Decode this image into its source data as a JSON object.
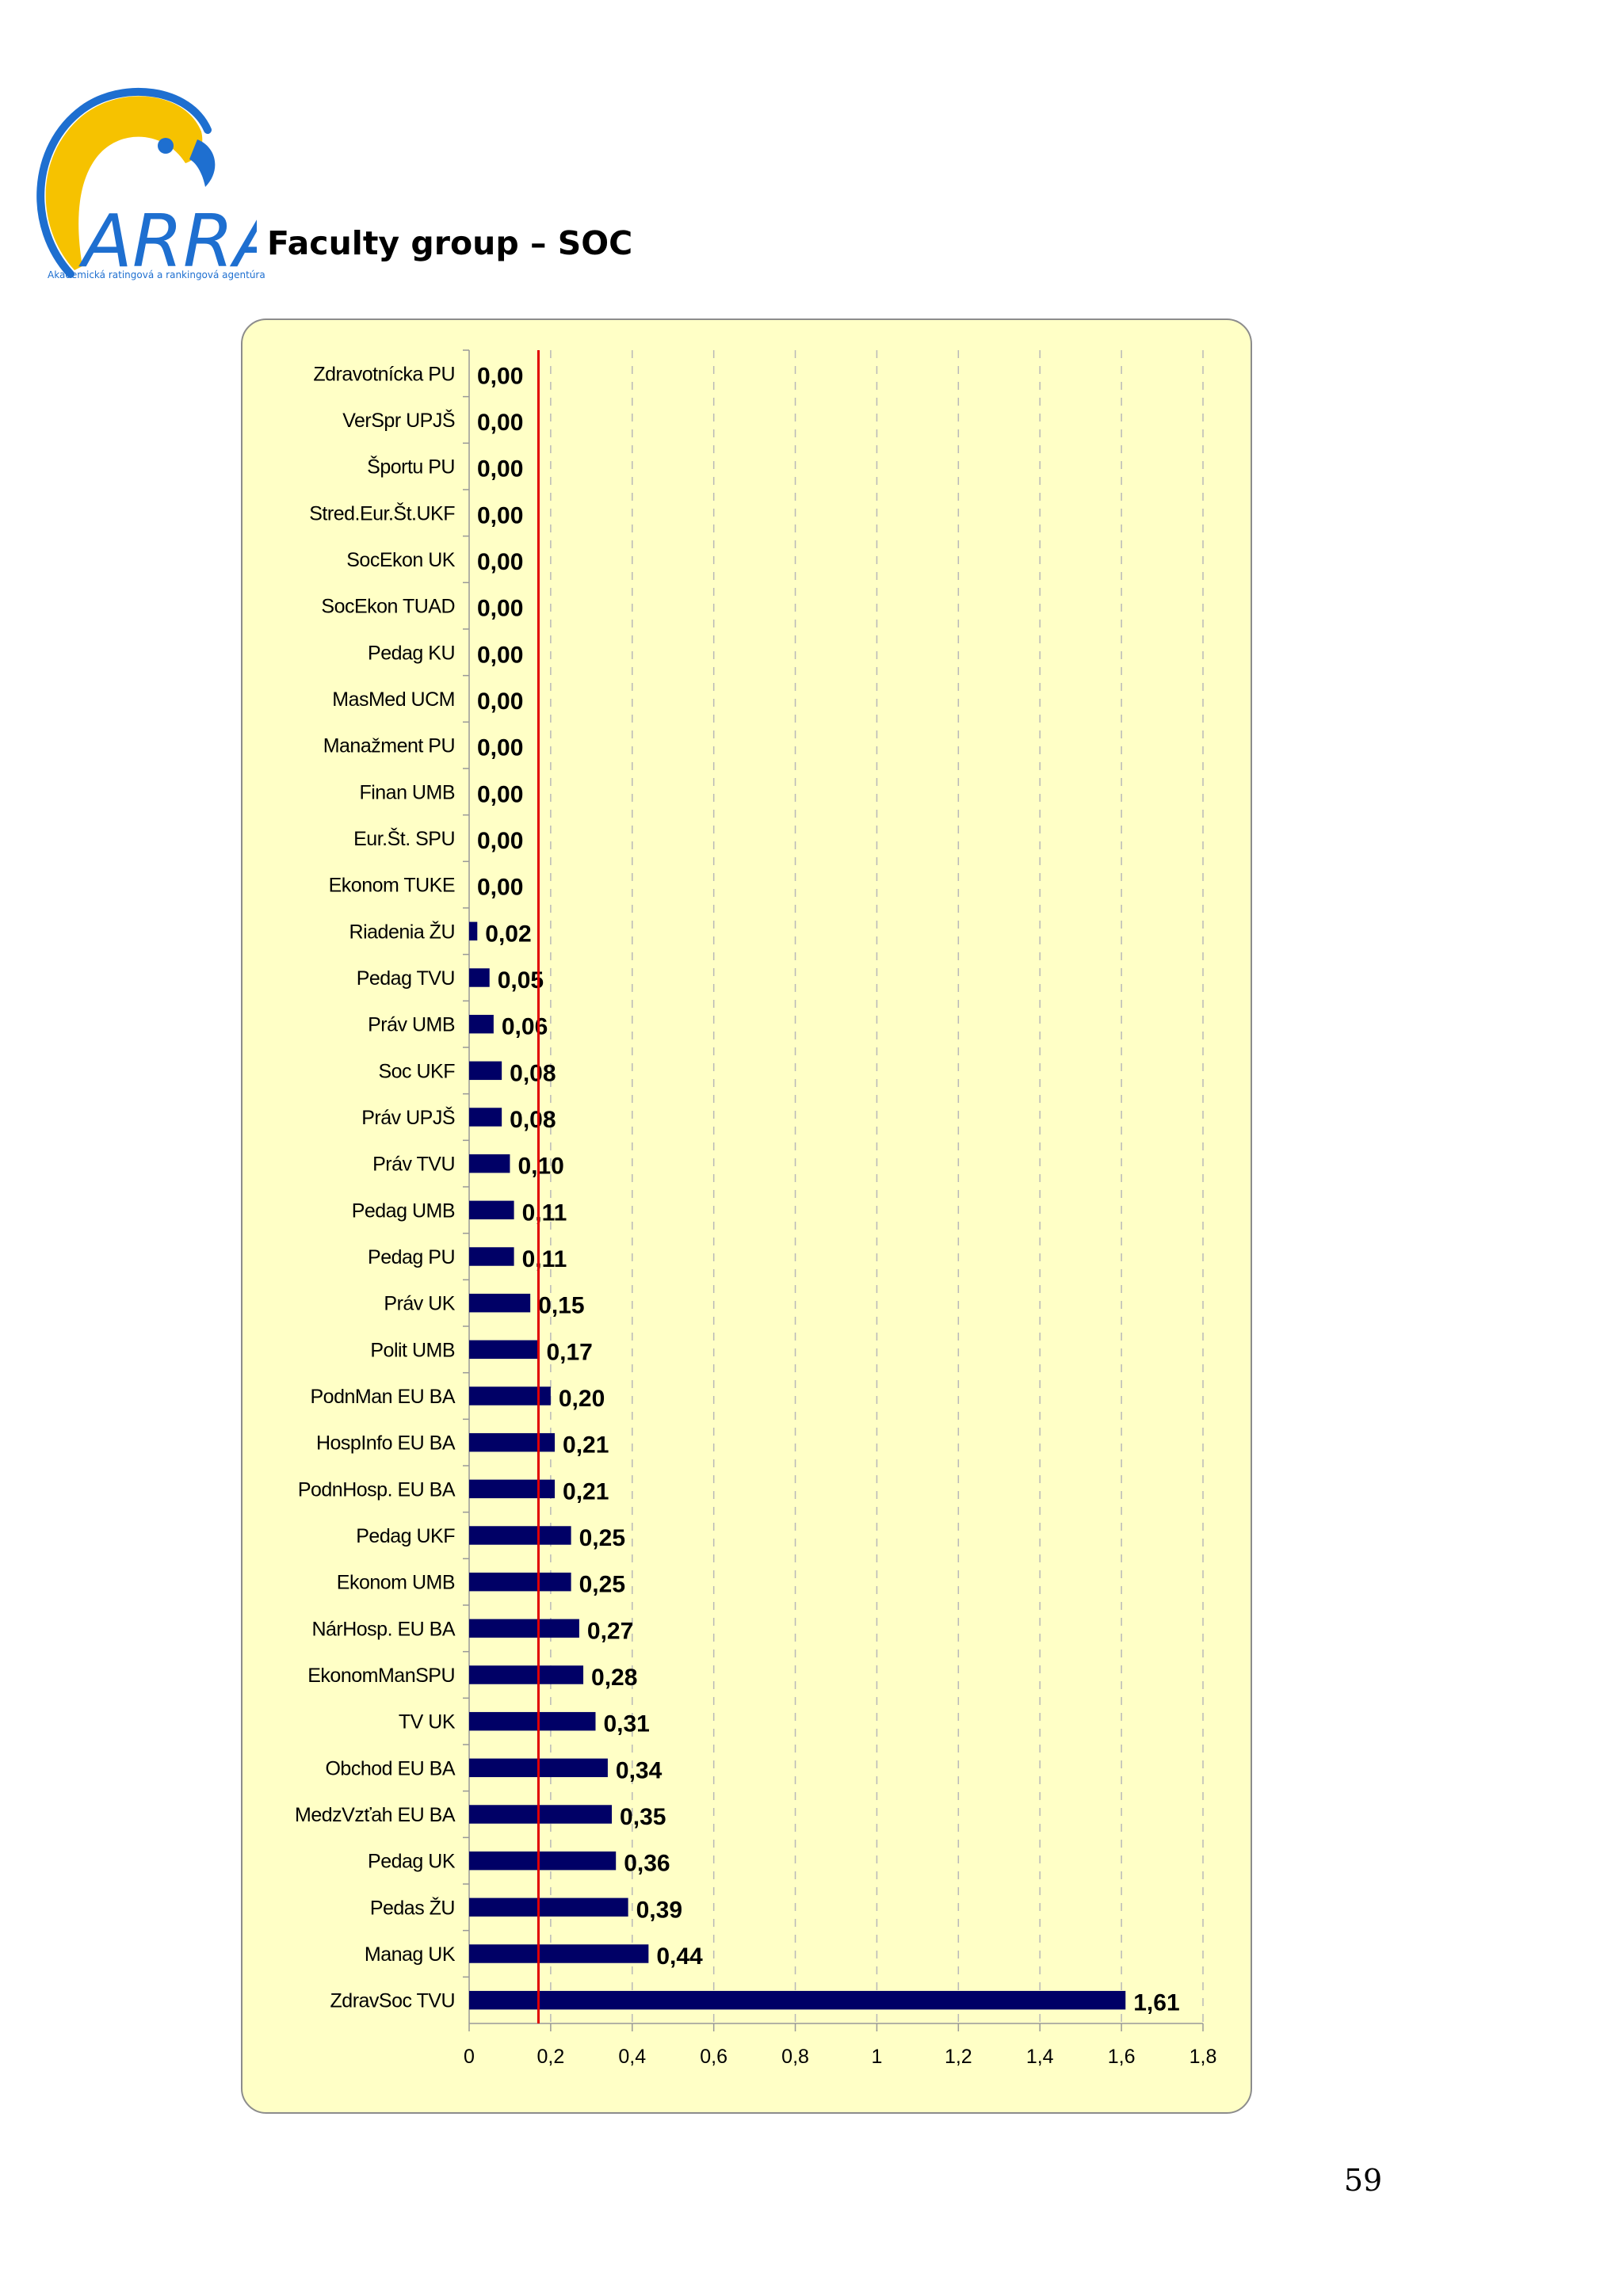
{
  "logo": {
    "name": "ARRA",
    "tagline": "Akademická ratingová a rankingová agentúra",
    "colors": {
      "blue": "#1e6fd0",
      "yellow": "#f6c200"
    }
  },
  "page": {
    "heading": "Faculty group – SOC",
    "number": "59"
  },
  "chart_data": {
    "type": "bar",
    "orientation": "horizontal",
    "title": "",
    "xlabel": "",
    "ylabel": "",
    "xlim": [
      0,
      1.8
    ],
    "xticks": [
      "0",
      "0,2",
      "0,4",
      "0,6",
      "0,8",
      "1",
      "1,2",
      "1,4",
      "1,6",
      "1,8"
    ],
    "xtick_values": [
      0,
      0.2,
      0.4,
      0.6,
      0.8,
      1.0,
      1.2,
      1.4,
      1.6,
      1.8
    ],
    "grid": true,
    "reference_line": {
      "value": 0.17,
      "color": "#e00000"
    },
    "bar_color": "#000066",
    "background": "#ffffc6",
    "categories": [
      "Zdravotnícka PU",
      "VerSpr UPJŠ",
      "Športu PU",
      "Stred.Eur.Št.UKF",
      "SocEkon UK",
      "SocEkon TUAD",
      "Pedag KU",
      "MasMed UCM",
      "Manažment PU",
      "Finan UMB",
      "Eur.Št. SPU",
      "Ekonom TUKE",
      "Riadenia  ŽU",
      "Pedag TVU",
      "Práv UMB",
      "Soc UKF",
      "Práv UPJŠ",
      "Práv TVU",
      "Pedag UMB",
      "Pedag PU",
      "Práv UK",
      "Polit UMB",
      "PodnMan EU BA",
      "HospInfo EU BA",
      "PodnHosp. EU BA",
      "Pedag UKF",
      "Ekonom UMB",
      "NárHosp. EU BA",
      "EkonomManSPU",
      "TV  UK",
      "Obchod EU BA",
      "MedzVzťah EU BA",
      "Pedag UK",
      "Pedas ŽU",
      "Manag UK",
      "ZdravSoc TVU"
    ],
    "values": [
      0,
      0,
      0,
      0,
      0,
      0,
      0,
      0,
      0,
      0,
      0,
      0,
      0.02,
      0.05,
      0.06,
      0.08,
      0.08,
      0.1,
      0.11,
      0.11,
      0.15,
      0.17,
      0.2,
      0.21,
      0.21,
      0.25,
      0.25,
      0.27,
      0.28,
      0.31,
      0.34,
      0.35,
      0.36,
      0.39,
      0.44,
      1.61
    ],
    "value_labels": [
      "0,00",
      "0,00",
      "0,00",
      "0,00",
      "0,00",
      "0,00",
      "0,00",
      "0,00",
      "0,00",
      "0,00",
      "0,00",
      "0,00",
      "0,02",
      "0,05",
      "0,06",
      "0,08",
      "0,08",
      "0,10",
      "0,11",
      "0,11",
      "0,15",
      "0,17",
      "0,20",
      "0,21",
      "0,21",
      "0,25",
      "0,25",
      "0,27",
      "0,28",
      "0,31",
      "0,34",
      "0,35",
      "0,36",
      "0,39",
      "0,44",
      "1,61"
    ]
  }
}
